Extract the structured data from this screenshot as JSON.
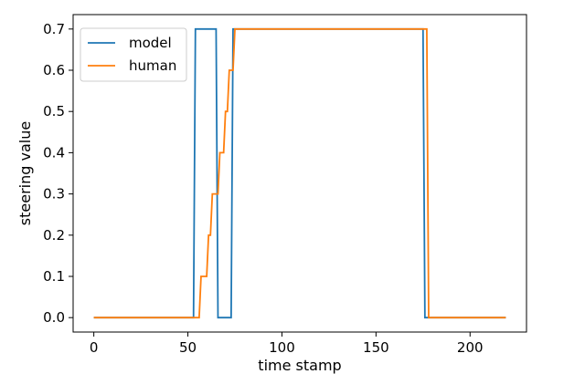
{
  "chart_data": {
    "type": "line",
    "title": "",
    "xlabel": "time stamp",
    "ylabel": "steering value",
    "xlim": [
      -11,
      230
    ],
    "ylim": [
      -0.035,
      0.735
    ],
    "xticks": [
      0,
      50,
      100,
      150,
      200
    ],
    "yticks": [
      0.0,
      0.1,
      0.2,
      0.3,
      0.4,
      0.5,
      0.6,
      0.7
    ],
    "xtick_labels": [
      "0",
      "50",
      "100",
      "150",
      "200"
    ],
    "ytick_labels": [
      "0.0",
      "0.1",
      "0.2",
      "0.3",
      "0.4",
      "0.5",
      "0.6",
      "0.7"
    ],
    "grid": false,
    "legend_position": "top-left",
    "series": [
      {
        "name": "model",
        "color": "#1f77b4",
        "x": [
          0,
          53,
          54,
          65,
          66,
          73,
          74,
          175,
          176,
          219
        ],
        "y": [
          0.0,
          0.0,
          0.7,
          0.7,
          0.0,
          0.0,
          0.7,
          0.7,
          0.0,
          0.0
        ]
      },
      {
        "name": "human",
        "color": "#ff7f0e",
        "x": [
          0,
          56,
          57,
          60,
          61,
          62,
          63,
          66,
          67,
          69,
          70,
          71,
          72,
          74,
          75,
          76,
          177,
          178,
          219
        ],
        "y": [
          0.0,
          0.0,
          0.1,
          0.1,
          0.2,
          0.2,
          0.3,
          0.3,
          0.4,
          0.4,
          0.5,
          0.5,
          0.6,
          0.6,
          0.7,
          0.7,
          0.7,
          0.0,
          0.0
        ]
      }
    ]
  }
}
